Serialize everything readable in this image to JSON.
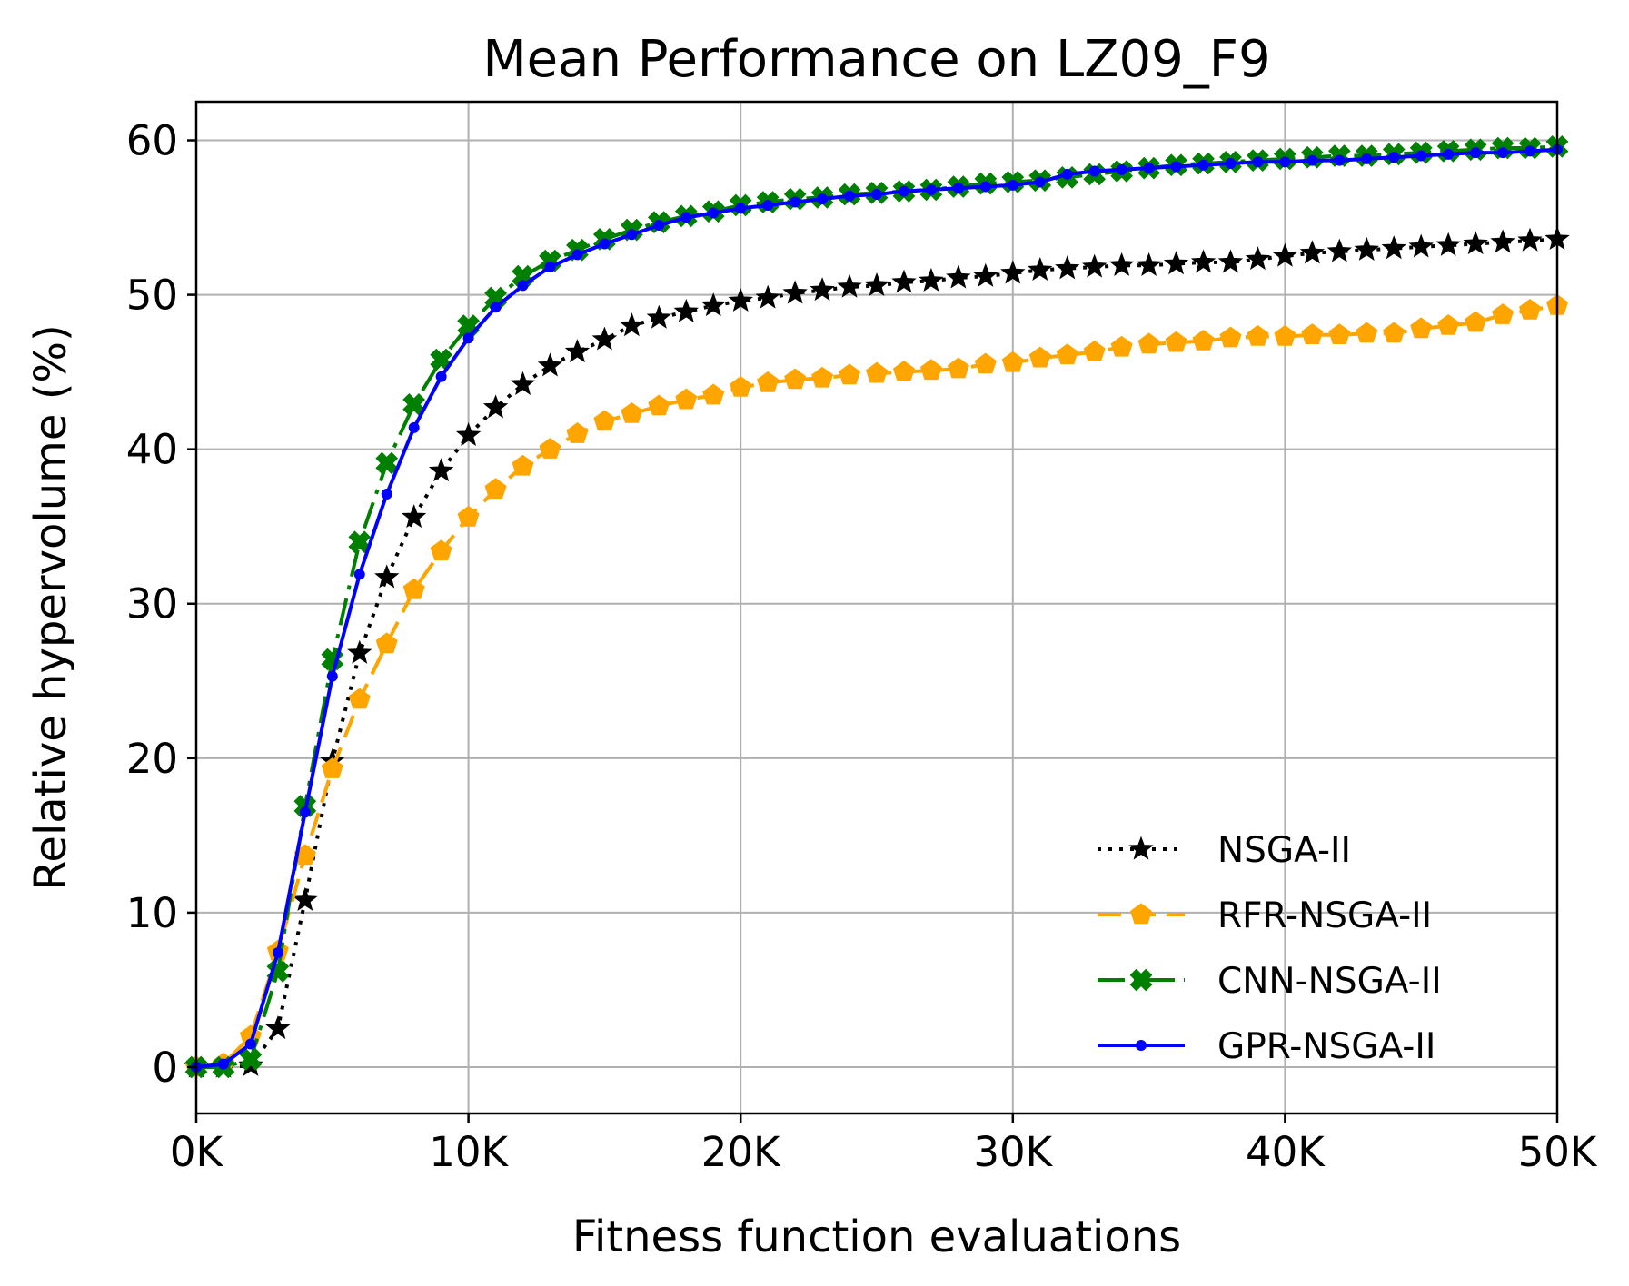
{
  "chart_data": {
    "type": "line",
    "title": "Mean Performance on LZ09_F9",
    "xlabel": "Fitness function evaluations",
    "ylabel": "Relative hypervolume (%)",
    "xlim": [
      0,
      50000
    ],
    "ylim": [
      -3,
      62.5
    ],
    "grid": true,
    "legend_position": "bottom-right",
    "x_ticks": [
      0,
      10000,
      20000,
      30000,
      40000,
      50000
    ],
    "x_tick_labels": [
      "0K",
      "10K",
      "20K",
      "30K",
      "40K",
      "50K"
    ],
    "y_ticks": [
      0,
      10,
      20,
      30,
      40,
      50,
      60
    ],
    "y_tick_labels": [
      "0",
      "10",
      "20",
      "30",
      "40",
      "50",
      "60"
    ],
    "x": [
      0,
      1000,
      2000,
      3000,
      4000,
      5000,
      6000,
      7000,
      8000,
      9000,
      10000,
      11000,
      12000,
      13000,
      14000,
      15000,
      16000,
      17000,
      18000,
      19000,
      20000,
      21000,
      22000,
      23000,
      24000,
      25000,
      26000,
      27000,
      28000,
      29000,
      30000,
      31000,
      32000,
      33000,
      34000,
      35000,
      36000,
      37000,
      38000,
      39000,
      40000,
      41000,
      42000,
      43000,
      44000,
      45000,
      46000,
      47000,
      48000,
      49000,
      50000
    ],
    "series": [
      {
        "name": "NSGA-II",
        "color": "#000000",
        "line_style": "dotted",
        "marker": "star",
        "values": [
          0,
          0,
          0.1,
          2.5,
          10.8,
          19.8,
          26.8,
          31.7,
          35.6,
          38.6,
          40.9,
          42.7,
          44.2,
          45.4,
          46.3,
          47.1,
          48.0,
          48.5,
          48.9,
          49.3,
          49.6,
          49.8,
          50.1,
          50.3,
          50.5,
          50.6,
          50.8,
          50.9,
          51.1,
          51.2,
          51.4,
          51.6,
          51.7,
          51.8,
          51.9,
          51.9,
          52.0,
          52.1,
          52.1,
          52.3,
          52.5,
          52.7,
          52.8,
          52.9,
          53.0,
          53.1,
          53.2,
          53.3,
          53.4,
          53.5,
          53.6
        ]
      },
      {
        "name": "RFR-NSGA-II",
        "color": "#ffa500",
        "line_style": "dashed",
        "marker": "pentagon",
        "values": [
          0,
          0.2,
          2.0,
          7.5,
          13.7,
          19.3,
          23.8,
          27.4,
          30.9,
          33.4,
          35.6,
          37.4,
          38.9,
          40.0,
          41.0,
          41.8,
          42.3,
          42.8,
          43.2,
          43.5,
          44.0,
          44.3,
          44.5,
          44.6,
          44.8,
          44.9,
          45.0,
          45.1,
          45.2,
          45.5,
          45.6,
          45.9,
          46.1,
          46.3,
          46.6,
          46.8,
          46.9,
          47.0,
          47.2,
          47.3,
          47.3,
          47.4,
          47.4,
          47.5,
          47.5,
          47.8,
          48.0,
          48.2,
          48.7,
          49.0,
          49.3
        ]
      },
      {
        "name": "CNN-NSGA-II",
        "color": "#008000",
        "line_style": "dashdot",
        "marker": "x-filled",
        "values": [
          0,
          0,
          0.5,
          6.2,
          16.9,
          26.4,
          34.0,
          39.1,
          42.9,
          45.8,
          48.0,
          49.8,
          51.2,
          52.2,
          52.9,
          53.6,
          54.2,
          54.7,
          55.1,
          55.4,
          55.8,
          56.0,
          56.2,
          56.3,
          56.5,
          56.6,
          56.7,
          56.8,
          57.0,
          57.2,
          57.3,
          57.4,
          57.6,
          57.8,
          58.0,
          58.2,
          58.4,
          58.5,
          58.6,
          58.7,
          58.8,
          58.9,
          59.0,
          59.0,
          59.1,
          59.2,
          59.3,
          59.4,
          59.5,
          59.5,
          59.6
        ]
      },
      {
        "name": "GPR-NSGA-II",
        "color": "#0000ff",
        "line_style": "solid",
        "marker": "dot",
        "values": [
          0,
          0.2,
          1.5,
          7.4,
          16.5,
          25.3,
          31.9,
          37.1,
          41.4,
          44.7,
          47.2,
          49.2,
          50.6,
          51.8,
          52.6,
          53.3,
          53.9,
          54.5,
          55.0,
          55.3,
          55.6,
          55.8,
          56.0,
          56.2,
          56.4,
          56.5,
          56.7,
          56.8,
          56.9,
          57.0,
          57.1,
          57.3,
          57.8,
          58.0,
          58.1,
          58.2,
          58.3,
          58.4,
          58.5,
          58.6,
          58.6,
          58.7,
          58.7,
          58.8,
          58.9,
          59.0,
          59.1,
          59.2,
          59.2,
          59.3,
          59.4
        ]
      }
    ]
  }
}
